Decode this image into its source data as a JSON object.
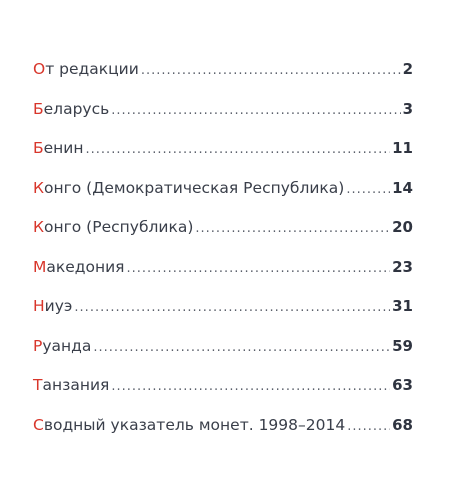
{
  "toc": {
    "items": [
      {
        "initial": "О",
        "rest": "т редакции",
        "page": "2"
      },
      {
        "initial": "Б",
        "rest": "еларусь",
        "page": "3"
      },
      {
        "initial": "Б",
        "rest": "енин",
        "page": "11"
      },
      {
        "initial": "К",
        "rest": "онго (Демократическая Республика)",
        "page": "14"
      },
      {
        "initial": "К",
        "rest": "онго (Республика)",
        "page": "20"
      },
      {
        "initial": "М",
        "rest": "акедония",
        "page": "23"
      },
      {
        "initial": "Н",
        "rest": "иуэ",
        "page": "31"
      },
      {
        "initial": "Р",
        "rest": "уанда",
        "page": "59"
      },
      {
        "initial": "Т",
        "rest": "анзания",
        "page": "63"
      },
      {
        "initial": "С",
        "rest": "водный указатель монет. 1998–2014",
        "page": "68"
      }
    ]
  },
  "colors": {
    "initial": "#d8362b",
    "text": "#3a3f4a",
    "page_number": "#2f3440"
  }
}
